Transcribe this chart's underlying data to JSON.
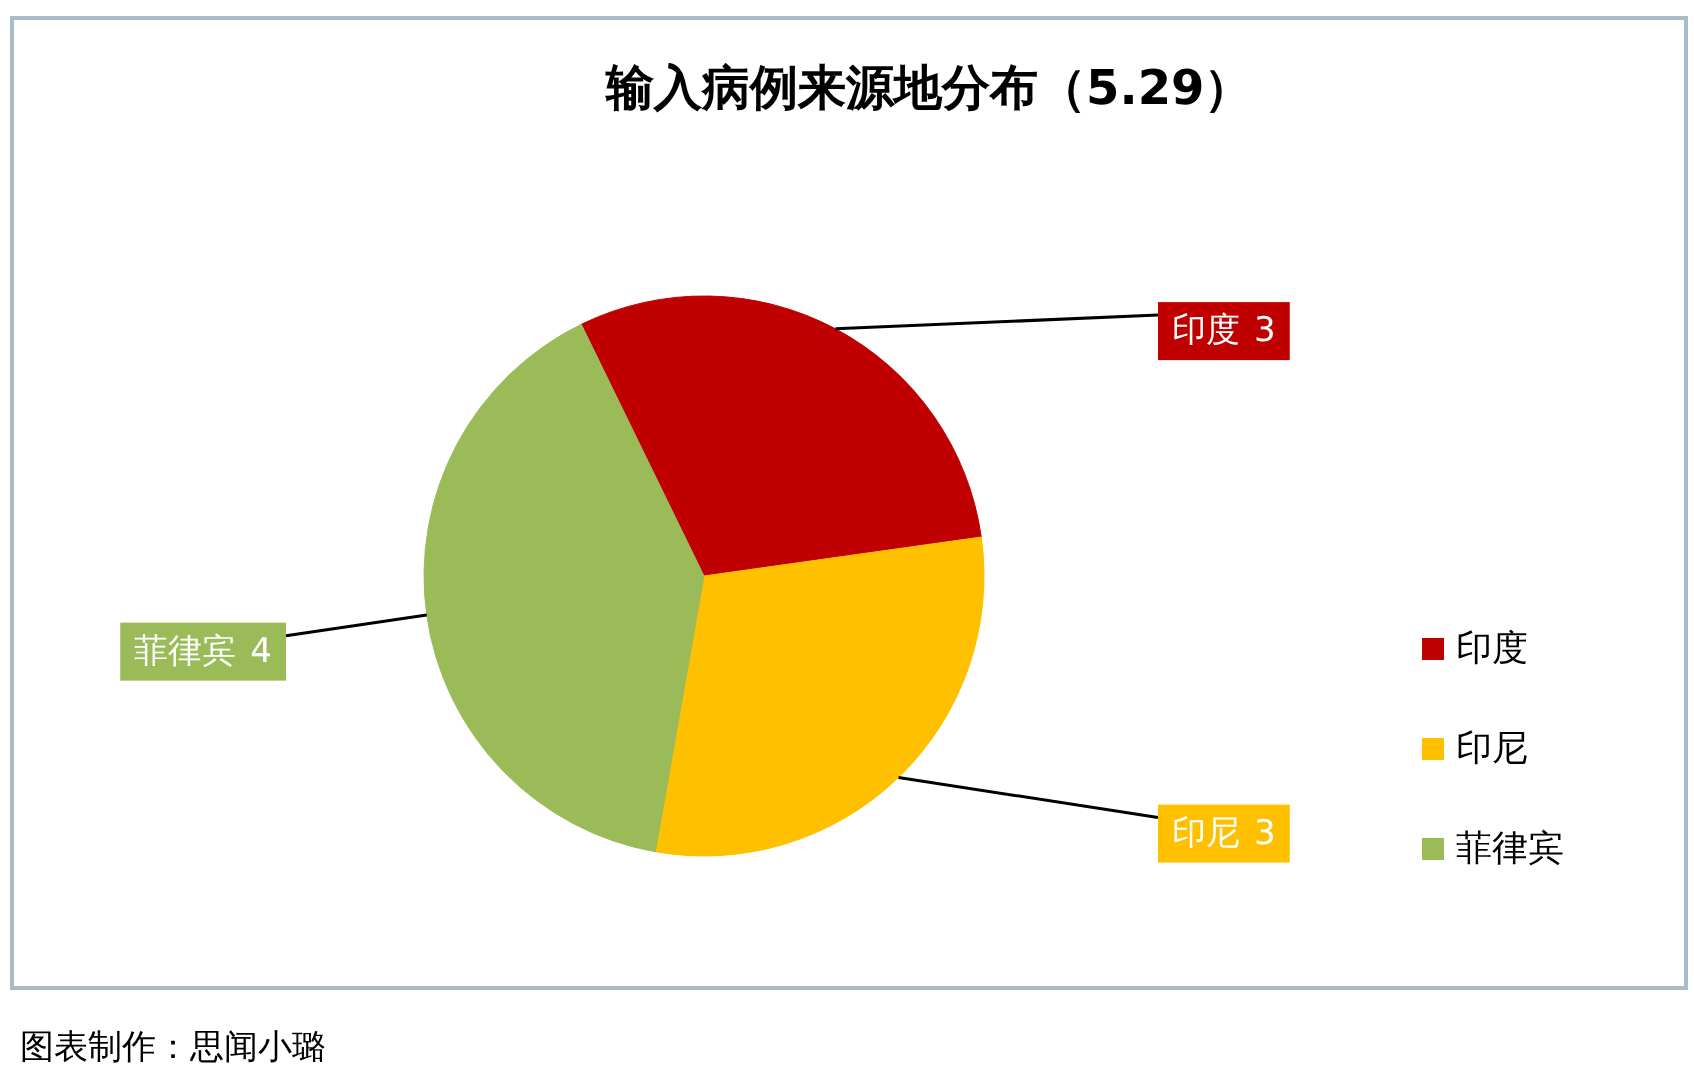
{
  "chart_data": {
    "type": "pie",
    "title": "输入病例来源地分布（5.29）",
    "categories": [
      "印度",
      "印尼",
      "菲律宾"
    ],
    "values": [
      3,
      3,
      4
    ],
    "colors": [
      "#c00000",
      "#ffc000",
      "#9bbb59"
    ],
    "data_labels": true,
    "legend": "right",
    "annotations": [
      "图表制作：思闻小璐"
    ]
  }
}
